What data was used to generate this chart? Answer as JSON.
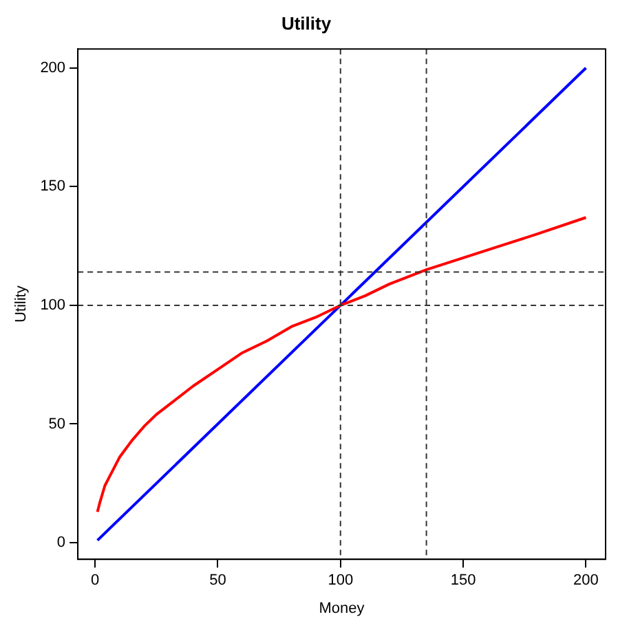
{
  "chart_data": {
    "type": "line",
    "title": "Utility",
    "xlabel": "Money",
    "ylabel": "Utility",
    "xlim": [
      -7,
      208
    ],
    "ylim": [
      -7,
      208
    ],
    "xticks": [
      0,
      50,
      100,
      150,
      200
    ],
    "yticks": [
      0,
      50,
      100,
      150,
      200
    ],
    "grid": false,
    "legend": false,
    "marker": "none",
    "line_style": "solid",
    "series": [
      {
        "color": "#ff0000",
        "x": [
          1,
          2,
          4,
          6,
          8,
          10,
          15,
          20,
          25,
          30,
          40,
          50,
          60,
          70,
          80,
          90,
          100,
          110,
          120,
          135,
          150,
          165,
          180,
          200
        ],
        "values": [
          13,
          17,
          24,
          28,
          32,
          36,
          43,
          49,
          54,
          58,
          66,
          73,
          80,
          85,
          91,
          95,
          100,
          104,
          109,
          115,
          120,
          125,
          130,
          137
        ]
      },
      {
        "color": "#0000ff",
        "x": [
          1,
          200
        ],
        "values": [
          1,
          200
        ]
      }
    ],
    "ref_lines": [
      {
        "axis": "y",
        "value": 100,
        "color": "#333333",
        "line_style": "dashed"
      },
      {
        "axis": "y",
        "value": 114,
        "color": "#333333",
        "line_style": "dashed"
      },
      {
        "axis": "x",
        "value": 100,
        "color": "#333333",
        "line_style": "dashed"
      },
      {
        "axis": "x",
        "value": 135,
        "color": "#333333",
        "line_style": "dashed"
      }
    ]
  }
}
